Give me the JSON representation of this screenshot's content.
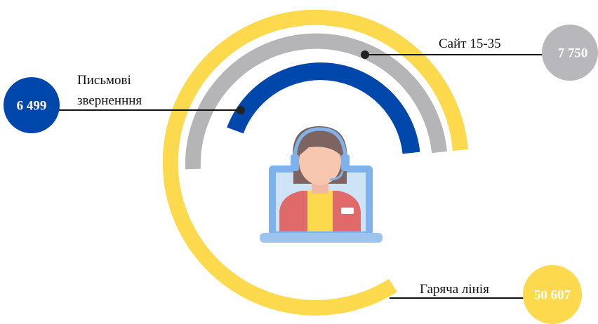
{
  "items": [
    {
      "label": [
        "Сайт 15-35"
      ],
      "value": "7 750"
    },
    {
      "label": [
        "Письмові",
        "зверненння"
      ],
      "value": "6 499"
    },
    {
      "label": [
        "Гаряча лінія"
      ],
      "value": "50 607"
    }
  ]
}
